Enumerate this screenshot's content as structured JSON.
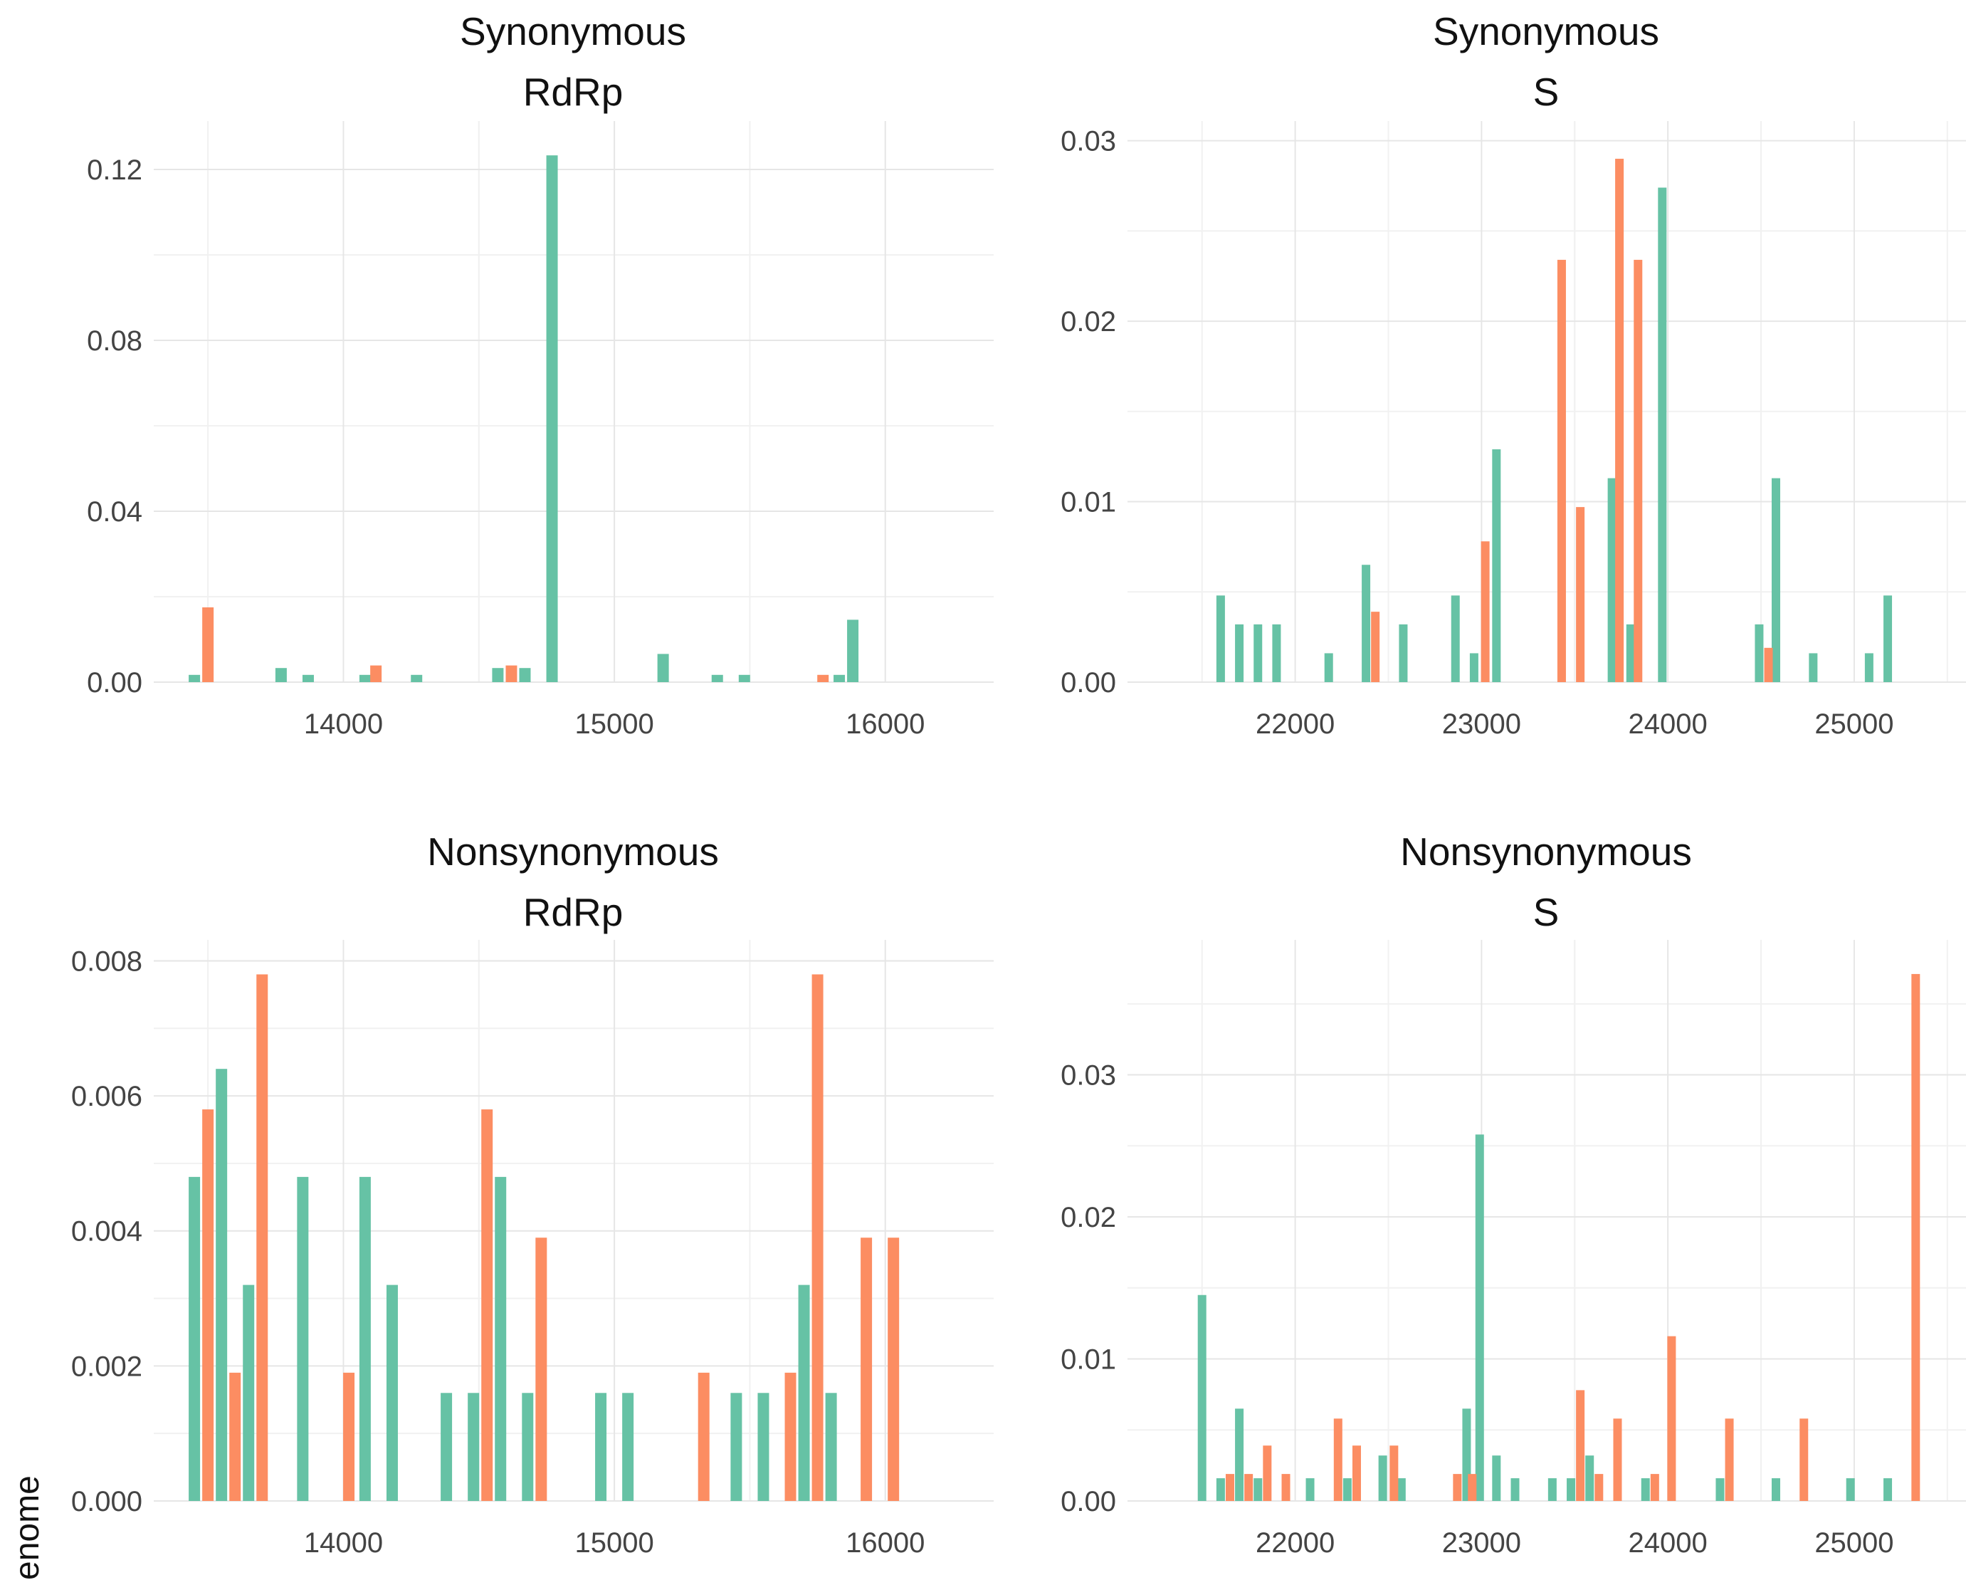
{
  "figure": {
    "side_label": "enome"
  },
  "colors": {
    "green": "#66C2A5",
    "orange": "#FC8D62"
  },
  "chart_data": [
    {
      "type": "bar",
      "title": "Synonymous",
      "subtitle": "RdRp",
      "xlim": [
        13300,
        16400
      ],
      "ylim": [
        0,
        0.128
      ],
      "x_ticks": [
        14000,
        15000,
        16000
      ],
      "y_ticks": [
        0,
        0.04,
        0.08,
        0.12
      ],
      "y_tick_labels": [
        "0.00",
        "0.04",
        "0.08",
        "0.12"
      ],
      "series": [
        {
          "color": "green",
          "points": [
            [
              13450,
              0.0017
            ],
            [
              13770,
              0.0033
            ],
            [
              13870,
              0.0017
            ],
            [
              14080,
              0.0017
            ],
            [
              14270,
              0.0017
            ],
            [
              14570,
              0.0033
            ],
            [
              14670,
              0.0033
            ],
            [
              14770,
              0.1233
            ],
            [
              15180,
              0.0066
            ],
            [
              15380,
              0.0017
            ],
            [
              15480,
              0.0017
            ],
            [
              15830,
              0.0017
            ],
            [
              15880,
              0.0146
            ]
          ]
        },
        {
          "color": "orange",
          "points": [
            [
              13500,
              0.0175
            ],
            [
              14120,
              0.0039
            ],
            [
              14620,
              0.0039
            ],
            [
              15770,
              0.0017
            ]
          ]
        }
      ]
    },
    {
      "type": "bar",
      "title": "Synonymous",
      "subtitle": "S",
      "xlim": [
        21100,
        25600
      ],
      "ylim": [
        0,
        0.0303
      ],
      "x_ticks": [
        22000,
        23000,
        24000,
        25000
      ],
      "y_ticks": [
        0,
        0.01,
        0.02,
        0.03
      ],
      "y_tick_labels": [
        "0.00",
        "0.01",
        "0.02",
        "0.03"
      ],
      "series": [
        {
          "color": "green",
          "points": [
            [
              21600,
              0.0048
            ],
            [
              21700,
              0.0032
            ],
            [
              21800,
              0.0032
            ],
            [
              21900,
              0.0032
            ],
            [
              22180,
              0.0016
            ],
            [
              22380,
              0.0065
            ],
            [
              22580,
              0.0032
            ],
            [
              22860,
              0.0048
            ],
            [
              22960,
              0.0016
            ],
            [
              23080,
              0.0129
            ],
            [
              23700,
              0.0113
            ],
            [
              23800,
              0.0032
            ],
            [
              23970,
              0.0274
            ],
            [
              24490,
              0.0032
            ],
            [
              24580,
              0.0113
            ],
            [
              24780,
              0.0016
            ],
            [
              25080,
              0.0016
            ],
            [
              25180,
              0.0048
            ]
          ]
        },
        {
          "color": "orange",
          "points": [
            [
              22430,
              0.0039
            ],
            [
              23020,
              0.0078
            ],
            [
              23430,
              0.0234
            ],
            [
              23530,
              0.0097
            ],
            [
              23740,
              0.029
            ],
            [
              23840,
              0.0234
            ],
            [
              24540,
              0.0019
            ]
          ]
        }
      ]
    },
    {
      "type": "bar",
      "title": "Nonsynonymous",
      "subtitle": "RdRp",
      "xlim": [
        13300,
        16400
      ],
      "ylim": [
        0,
        0.0081
      ],
      "x_ticks": [
        14000,
        15000,
        16000
      ],
      "y_ticks": [
        0,
        0.002,
        0.004,
        0.006,
        0.008
      ],
      "y_tick_labels": [
        "0.000",
        "0.002",
        "0.004",
        "0.006",
        "0.008"
      ],
      "series": [
        {
          "color": "green",
          "points": [
            [
              13450,
              0.0048
            ],
            [
              13550,
              0.0064
            ],
            [
              13650,
              0.0032
            ],
            [
              13850,
              0.0048
            ],
            [
              14080,
              0.0048
            ],
            [
              14180,
              0.0032
            ],
            [
              14380,
              0.0016
            ],
            [
              14480,
              0.0016
            ],
            [
              14580,
              0.0048
            ],
            [
              14680,
              0.0016
            ],
            [
              14950,
              0.0016
            ],
            [
              15050,
              0.0016
            ],
            [
              15450,
              0.0016
            ],
            [
              15550,
              0.0016
            ],
            [
              15700,
              0.0032
            ],
            [
              15800,
              0.0016
            ]
          ]
        },
        {
          "color": "orange",
          "points": [
            [
              13500,
              0.0058
            ],
            [
              13600,
              0.0019
            ],
            [
              13700,
              0.0078
            ],
            [
              14020,
              0.0019
            ],
            [
              14530,
              0.0058
            ],
            [
              14730,
              0.0039
            ],
            [
              15330,
              0.0019
            ],
            [
              15650,
              0.0019
            ],
            [
              15750,
              0.0078
            ],
            [
              15930,
              0.0039
            ],
            [
              16030,
              0.0039
            ]
          ]
        }
      ]
    },
    {
      "type": "bar",
      "title": "Nonsynonymous",
      "subtitle": "S",
      "xlim": [
        21100,
        25600
      ],
      "ylim": [
        0,
        0.0385
      ],
      "x_ticks": [
        22000,
        23000,
        24000,
        25000
      ],
      "y_ticks": [
        0,
        0.01,
        0.02,
        0.03
      ],
      "y_tick_labels": [
        "0.00",
        "0.01",
        "0.02",
        "0.03"
      ],
      "series": [
        {
          "color": "green",
          "points": [
            [
              21500,
              0.0145
            ],
            [
              21600,
              0.0016
            ],
            [
              21700,
              0.0065
            ],
            [
              21800,
              0.0016
            ],
            [
              22080,
              0.0016
            ],
            [
              22280,
              0.0016
            ],
            [
              22470,
              0.0032
            ],
            [
              22570,
              0.0016
            ],
            [
              22920,
              0.0065
            ],
            [
              22990,
              0.0258
            ],
            [
              23080,
              0.0032
            ],
            [
              23180,
              0.0016
            ],
            [
              23380,
              0.0016
            ],
            [
              23480,
              0.0016
            ],
            [
              23580,
              0.0032
            ],
            [
              23880,
              0.0016
            ],
            [
              24280,
              0.0016
            ],
            [
              24580,
              0.0016
            ],
            [
              24980,
              0.0016
            ],
            [
              25180,
              0.0016
            ]
          ]
        },
        {
          "color": "orange",
          "points": [
            [
              21650,
              0.0019
            ],
            [
              21750,
              0.0019
            ],
            [
              21850,
              0.0039
            ],
            [
              21950,
              0.0019
            ],
            [
              22230,
              0.0058
            ],
            [
              22330,
              0.0039
            ],
            [
              22530,
              0.0039
            ],
            [
              22870,
              0.0019
            ],
            [
              22950,
              0.0019
            ],
            [
              23530,
              0.0078
            ],
            [
              23630,
              0.0019
            ],
            [
              23730,
              0.0058
            ],
            [
              23930,
              0.0019
            ],
            [
              24020,
              0.0116
            ],
            [
              24330,
              0.0058
            ],
            [
              24730,
              0.0058
            ],
            [
              25330,
              0.0371
            ]
          ]
        }
      ]
    }
  ]
}
